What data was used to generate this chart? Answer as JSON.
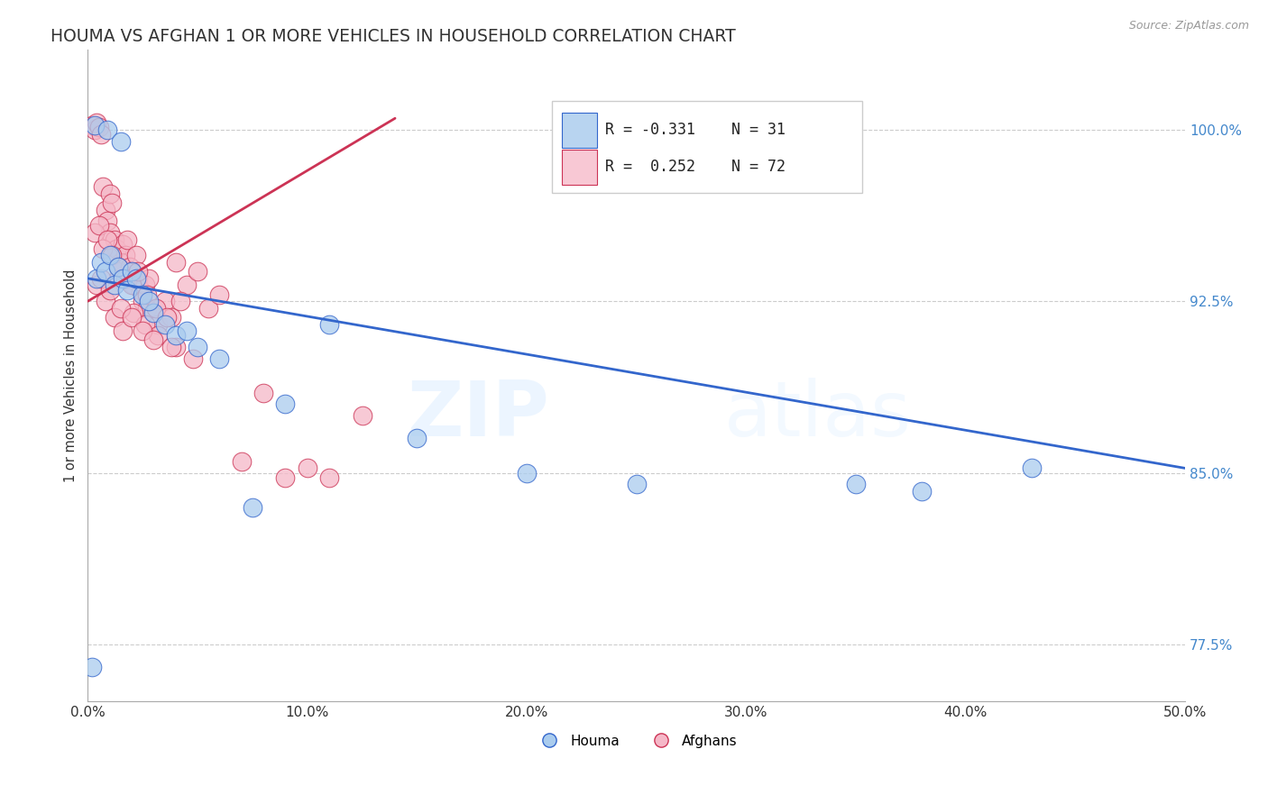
{
  "title": "HOUMA VS AFGHAN 1 OR MORE VEHICLES IN HOUSEHOLD CORRELATION CHART",
  "ylabel": "1 or more Vehicles in Household",
  "source": "Source: ZipAtlas.com",
  "watermark_zip": "ZIP",
  "watermark_atlas": "atlas",
  "xlim": [
    0.0,
    50.0
  ],
  "ylim": [
    75.0,
    103.5
  ],
  "yticks": [
    77.5,
    85.0,
    92.5,
    100.0
  ],
  "xticks": [
    0.0,
    10.0,
    20.0,
    30.0,
    40.0,
    50.0
  ],
  "xtick_labels": [
    "0.0%",
    "10.0%",
    "20.0%",
    "30.0%",
    "40.0%",
    "50.0%"
  ],
  "ytick_labels": [
    "77.5%",
    "85.0%",
    "92.5%",
    "100.0%"
  ],
  "houma_color": "#aaccee",
  "afghan_color": "#f5b8c8",
  "houma_R": -0.331,
  "houma_N": 31,
  "afghan_R": 0.252,
  "afghan_N": 72,
  "houma_line_color": "#3366cc",
  "afghan_line_color": "#cc3355",
  "legend_box_houma": "#b8d4f0",
  "legend_box_afghan": "#f8c8d4",
  "houma_x": [
    0.2,
    0.4,
    0.6,
    0.8,
    1.0,
    1.2,
    1.4,
    1.6,
    1.8,
    2.0,
    2.2,
    2.5,
    3.0,
    3.5,
    4.0,
    5.0,
    6.0,
    7.5,
    9.0,
    11.0,
    15.0,
    20.0,
    25.0,
    35.0,
    38.0,
    43.0,
    0.3,
    0.9,
    1.5,
    2.8,
    4.5
  ],
  "houma_y": [
    76.5,
    93.5,
    94.2,
    93.8,
    94.5,
    93.2,
    94.0,
    93.5,
    93.0,
    93.8,
    93.5,
    92.8,
    92.0,
    91.5,
    91.0,
    90.5,
    90.0,
    83.5,
    88.0,
    91.5,
    86.5,
    85.0,
    84.5,
    84.5,
    84.2,
    85.2,
    100.2,
    100.0,
    99.5,
    92.5,
    91.2
  ],
  "afghan_x": [
    0.2,
    0.3,
    0.4,
    0.5,
    0.6,
    0.7,
    0.8,
    0.9,
    1.0,
    1.0,
    1.1,
    1.2,
    1.3,
    1.4,
    1.5,
    1.6,
    1.7,
    1.8,
    1.9,
    2.0,
    2.1,
    2.2,
    2.3,
    2.4,
    2.5,
    2.6,
    2.7,
    2.8,
    3.0,
    3.2,
    3.5,
    3.8,
    4.0,
    4.5,
    5.0,
    5.5,
    6.0,
    7.0,
    8.0,
    9.0,
    10.0,
    11.0,
    12.5,
    0.3,
    0.5,
    0.7,
    0.9,
    1.1,
    1.4,
    1.7,
    2.0,
    2.3,
    2.7,
    3.1,
    3.6,
    4.2,
    0.4,
    0.8,
    1.2,
    1.6,
    2.1,
    2.6,
    3.2,
    4.0,
    0.6,
    1.0,
    1.5,
    2.0,
    2.5,
    3.0,
    3.8,
    4.8
  ],
  "afghan_y": [
    100.2,
    100.0,
    100.3,
    100.1,
    99.8,
    97.5,
    96.5,
    96.0,
    97.2,
    95.5,
    96.8,
    95.2,
    94.8,
    93.5,
    94.2,
    95.0,
    94.5,
    95.2,
    94.0,
    93.8,
    93.2,
    94.5,
    93.5,
    93.0,
    92.5,
    93.2,
    92.2,
    93.5,
    92.0,
    91.5,
    92.5,
    91.8,
    94.2,
    93.2,
    93.8,
    92.2,
    92.8,
    85.5,
    88.5,
    84.8,
    85.2,
    84.8,
    87.5,
    95.5,
    95.8,
    94.8,
    95.2,
    94.5,
    94.0,
    93.5,
    93.2,
    93.8,
    92.8,
    92.2,
    91.8,
    92.5,
    93.2,
    92.5,
    91.8,
    91.2,
    92.0,
    91.5,
    91.0,
    90.5,
    93.5,
    93.0,
    92.2,
    91.8,
    91.2,
    90.8,
    90.5,
    90.0
  ],
  "houma_line_x0": 0.0,
  "houma_line_x1": 50.0,
  "houma_line_y0": 93.5,
  "houma_line_y1": 85.2,
  "afghan_line_x0": 0.0,
  "afghan_line_x1": 14.0,
  "afghan_line_y0": 92.5,
  "afghan_line_y1": 100.5
}
